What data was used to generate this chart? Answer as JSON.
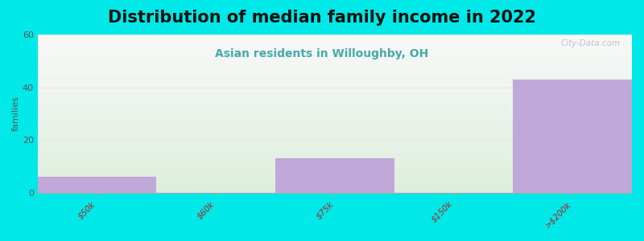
{
  "title": "Distribution of median family income in 2022",
  "subtitle": "Asian residents in Willoughby, OH",
  "categories": [
    "$50k",
    "$60k",
    "$75k",
    "$150k",
    ">$200k"
  ],
  "values": [
    6,
    0,
    13,
    0,
    43
  ],
  "bar_color": "#c0a8d8",
  "background_outer": "#00e8e8",
  "background_plot_color_bottom": "#ddeedd",
  "background_plot_color_top": "#f8f8f8",
  "ylabel": "families",
  "ylim": [
    0,
    60
  ],
  "yticks": [
    0,
    20,
    40,
    60
  ],
  "grid_color": "#e8e8e8",
  "title_fontsize": 15,
  "subtitle_fontsize": 10,
  "subtitle_color": "#44aaaa",
  "watermark": "City-Data.com",
  "bar_width": 1.0,
  "tick_color": "#aa2222",
  "ytick_color": "#555555"
}
